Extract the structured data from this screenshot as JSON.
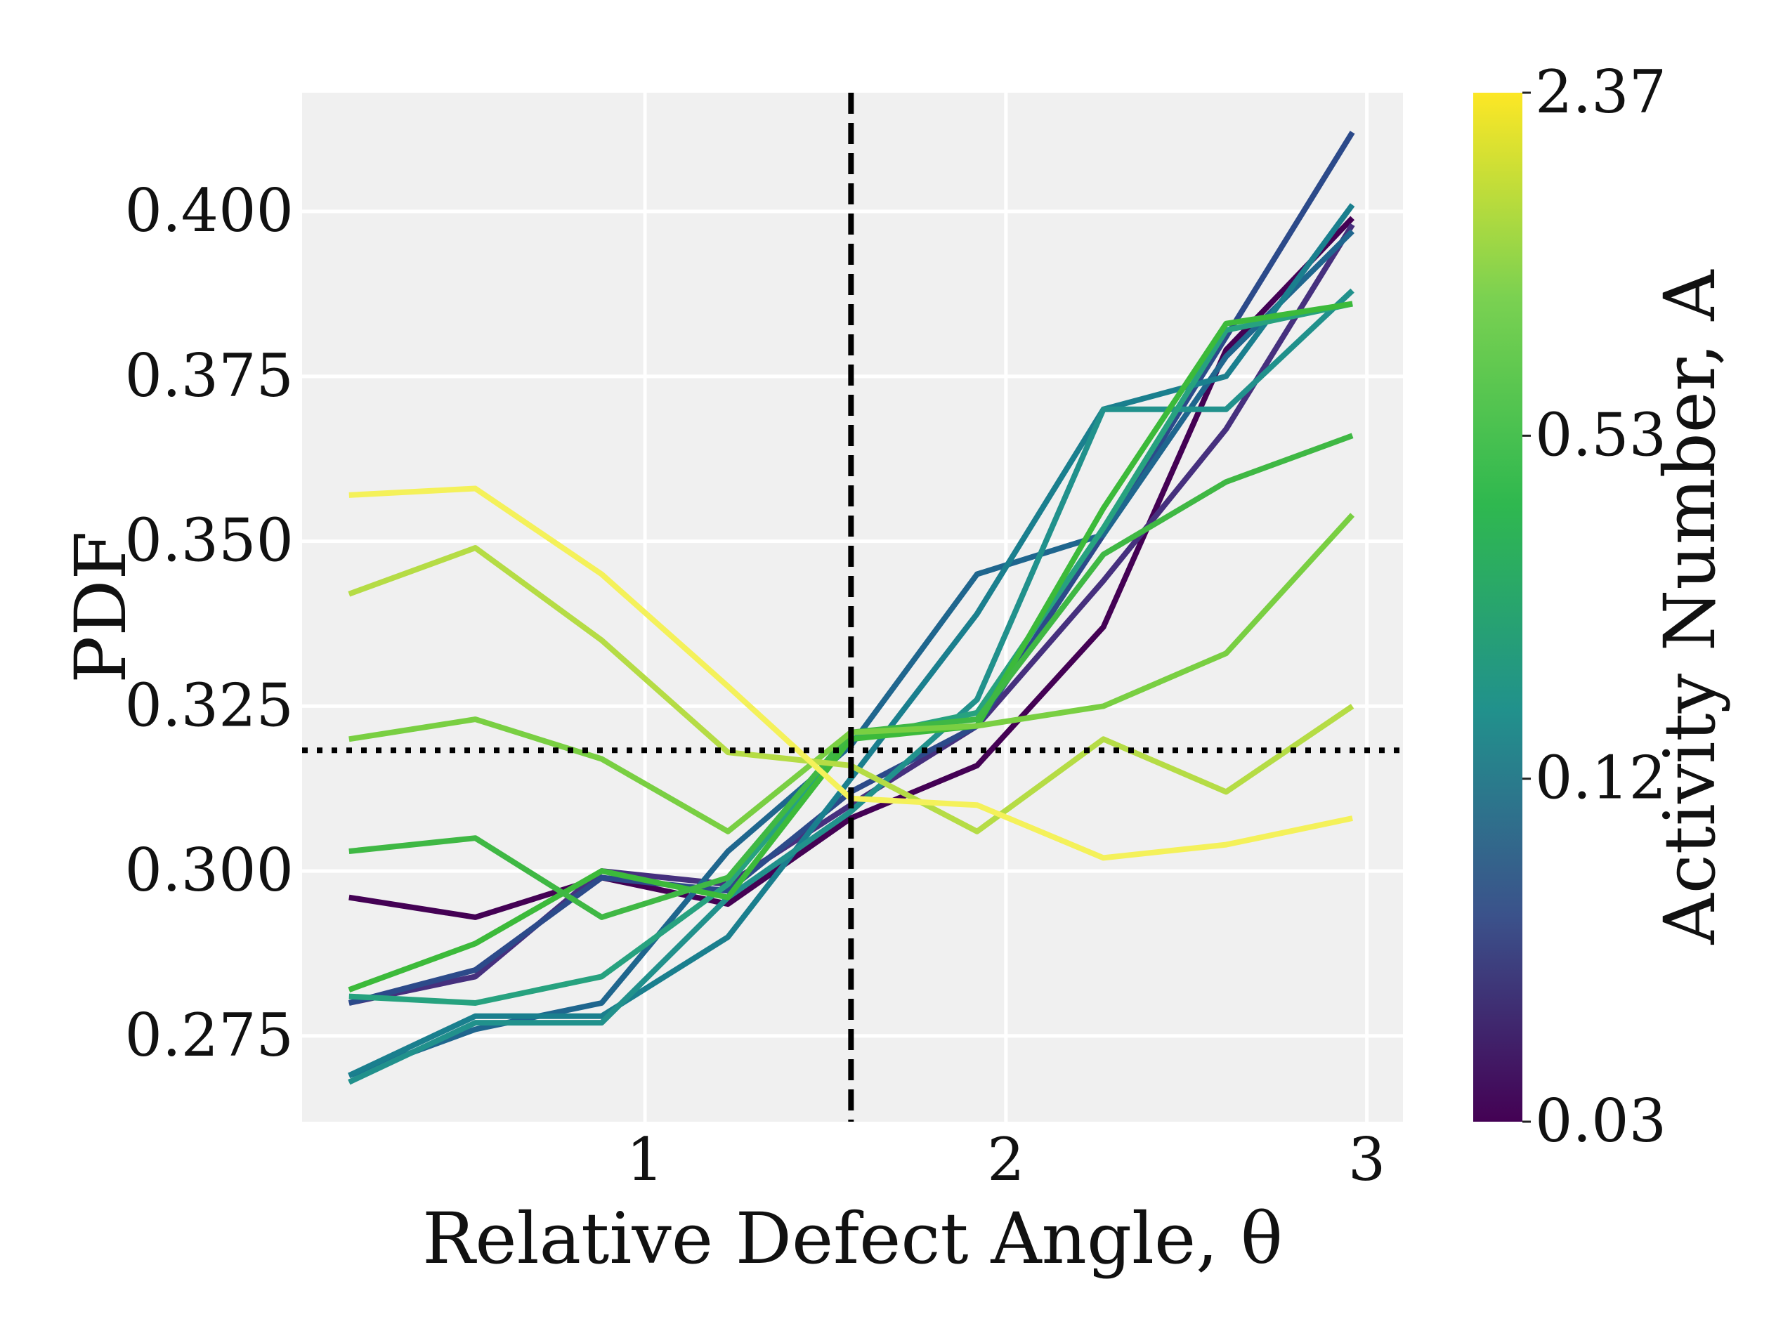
{
  "chart_data": {
    "type": "line",
    "xlabel": "Relative Defect Angle, θ",
    "ylabel": "PDF",
    "xlim": [
      0.05,
      3.1
    ],
    "ylim": [
      0.262,
      0.418
    ],
    "x_ticks": [
      1,
      2,
      3
    ],
    "x_tick_labels": [
      "1",
      "2",
      "3"
    ],
    "y_ticks": [
      0.275,
      0.3,
      0.325,
      0.35,
      0.375,
      0.4
    ],
    "y_tick_labels": [
      "0.275",
      "0.300",
      "0.325",
      "0.350",
      "0.375",
      "0.400"
    ],
    "grid": true,
    "background": "#f0f0f0",
    "reference_lines": {
      "vertical_x": 1.5708,
      "vertical_style": "dashed",
      "horizontal_y": 0.3183,
      "horizontal_style": "dotted",
      "color": "#000000"
    },
    "x": [
      0.18,
      0.53,
      0.88,
      1.23,
      1.57,
      1.92,
      2.27,
      2.61,
      2.96
    ],
    "series": [
      {
        "color": "#440154",
        "values": [
          0.296,
          0.293,
          0.299,
          0.295,
          0.308,
          0.316,
          0.337,
          0.379,
          0.399
        ]
      },
      {
        "color": "#46307e",
        "values": [
          0.28,
          0.284,
          0.3,
          0.298,
          0.31,
          0.322,
          0.344,
          0.367,
          0.398
        ]
      },
      {
        "color": "#2c4a8a",
        "values": [
          0.28,
          0.285,
          0.299,
          0.297,
          0.312,
          0.322,
          0.351,
          0.381,
          0.412
        ]
      },
      {
        "color": "#1f668e",
        "values": [
          0.269,
          0.276,
          0.28,
          0.303,
          0.319,
          0.345,
          0.351,
          0.378,
          0.397
        ]
      },
      {
        "color": "#1a7f8e",
        "values": [
          0.269,
          0.278,
          0.278,
          0.29,
          0.314,
          0.339,
          0.37,
          0.375,
          0.401
        ]
      },
      {
        "color": "#21918c",
        "values": [
          0.268,
          0.277,
          0.277,
          0.296,
          0.309,
          0.326,
          0.37,
          0.37,
          0.388
        ]
      },
      {
        "color": "#27a27f",
        "values": [
          0.281,
          0.28,
          0.284,
          0.298,
          0.32,
          0.324,
          0.352,
          0.382,
          0.386
        ]
      },
      {
        "color": "#3cba3a",
        "values": [
          0.282,
          0.289,
          0.3,
          0.296,
          0.32,
          0.322,
          0.355,
          0.383,
          0.386
        ]
      },
      {
        "color": "#3fb844",
        "values": [
          0.303,
          0.305,
          0.293,
          0.299,
          0.321,
          0.323,
          0.348,
          0.359,
          0.366
        ]
      },
      {
        "color": "#79cf42",
        "values": [
          0.32,
          0.323,
          0.317,
          0.306,
          0.321,
          0.322,
          0.325,
          0.333,
          0.354
        ]
      },
      {
        "color": "#b5dc45",
        "values": [
          0.342,
          0.349,
          0.335,
          0.318,
          0.316,
          0.306,
          0.32,
          0.312,
          0.325
        ]
      },
      {
        "color": "#f4f15a",
        "values": [
          0.357,
          0.358,
          0.345,
          0.328,
          0.311,
          0.31,
          0.302,
          0.304,
          0.308
        ]
      }
    ],
    "colorbar": {
      "label": "Activity Number, A",
      "ticks": [
        "0.03",
        "0.12",
        "0.53",
        "2.37"
      ],
      "colormap": [
        "#440154",
        "#3b528b",
        "#21918c",
        "#2fb84f",
        "#7ad151",
        "#fde725"
      ]
    }
  }
}
